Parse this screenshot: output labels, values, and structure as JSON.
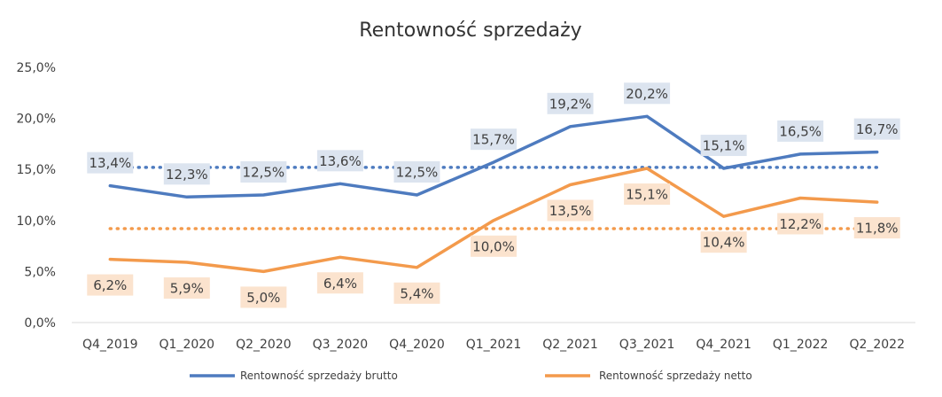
{
  "chart_data": {
    "type": "line",
    "title": "Rentowność sprzedaży",
    "xlabel": "",
    "ylabel": "",
    "categories": [
      "Q4_2019",
      "Q1_2020",
      "Q2_2020",
      "Q3_2020",
      "Q4_2020",
      "Q1_2021",
      "Q2_2021",
      "Q3_2021",
      "Q4_2021",
      "Q1_2022",
      "Q2_2022"
    ],
    "ylim": [
      0,
      25
    ],
    "y_ticks": [
      0,
      5,
      10,
      15,
      20,
      25
    ],
    "y_tick_labels": [
      "0,0%",
      "5,0%",
      "10,0%",
      "15,0%",
      "20,0%",
      "25,0%"
    ],
    "grid": false,
    "legend_position": "bottom",
    "series": [
      {
        "name": "Rentowność sprzedaży brutto",
        "color": "#4E7BBF",
        "label_bg": "#DCE4EF",
        "values": [
          13.4,
          12.3,
          12.5,
          13.6,
          12.5,
          15.7,
          19.2,
          20.2,
          15.1,
          16.5,
          16.7
        ],
        "labels": [
          "13,4%",
          "12,3%",
          "12,5%",
          "13,6%",
          "12,5%",
          "15,7%",
          "19,2%",
          "20,2%",
          "15,1%",
          "16,5%",
          "16,7%"
        ],
        "label_side": [
          "above",
          "above",
          "above",
          "above",
          "above",
          "above",
          "above",
          "above",
          "above",
          "above",
          "above"
        ],
        "average": 15.2
      },
      {
        "name": "Rentowność sprzedaży netto",
        "color": "#F39A4C",
        "label_bg": "#FBE3CE",
        "values": [
          6.2,
          5.9,
          5.0,
          6.4,
          5.4,
          10.0,
          13.5,
          15.1,
          10.4,
          12.2,
          11.8
        ],
        "labels": [
          "6,2%",
          "5,9%",
          "5,0%",
          "6,4%",
          "5,4%",
          "10,0%",
          "13,5%",
          "15,1%",
          "10,4%",
          "12,2%",
          "11,8%"
        ],
        "label_side": [
          "below",
          "below",
          "below",
          "below",
          "below",
          "below",
          "below",
          "below",
          "below",
          "below",
          "below"
        ],
        "average": 9.2
      }
    ]
  }
}
